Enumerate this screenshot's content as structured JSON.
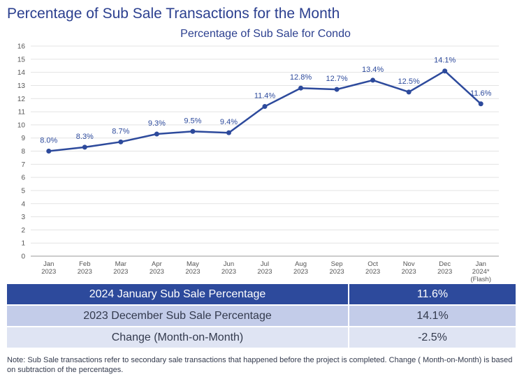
{
  "page_title": "Percentage of Sub Sale Transactions for the Month",
  "colors": {
    "title": "#2b3f8f",
    "line": "#2d4a9c",
    "row_header_bg": "#2d4a9c",
    "row_alt_bg": "#c3cce9",
    "row_light_bg": "#dfe4f3",
    "negative": "#e03131"
  },
  "chart_data": {
    "type": "line",
    "title": "Percentage of Sub Sale for Condo",
    "xlabel": "",
    "ylabel": "",
    "ylim": [
      0,
      16
    ],
    "yticks": [
      0,
      1,
      2,
      3,
      4,
      5,
      6,
      7,
      8,
      9,
      10,
      11,
      12,
      13,
      14,
      15,
      16
    ],
    "grid": true,
    "categories": [
      [
        "Jan",
        "2023"
      ],
      [
        "Feb",
        "2023"
      ],
      [
        "Mar",
        "2023"
      ],
      [
        "Apr",
        "2023"
      ],
      [
        "May",
        "2023"
      ],
      [
        "Jun",
        "2023"
      ],
      [
        "Jul",
        "2023"
      ],
      [
        "Aug",
        "2023"
      ],
      [
        "Sep",
        "2023"
      ],
      [
        "Oct",
        "2023"
      ],
      [
        "Nov",
        "2023"
      ],
      [
        "Dec",
        "2023"
      ],
      [
        "Jan",
        "2024*",
        "(Flash)"
      ]
    ],
    "values": [
      8.0,
      8.3,
      8.7,
      9.3,
      9.5,
      9.4,
      11.4,
      12.8,
      12.7,
      13.4,
      12.5,
      14.1,
      11.6
    ],
    "data_labels": [
      "8.0%",
      "8.3%",
      "8.7%",
      "9.3%",
      "9.5%",
      "9.4%",
      "11.4%",
      "12.8%",
      "12.7%",
      "13.4%",
      "12.5%",
      "14.1%",
      "11.6%"
    ]
  },
  "summary": {
    "rows": [
      {
        "label": "2024 January Sub Sale Percentage",
        "value": "11.6%"
      },
      {
        "label": "2023 December Sub Sale Percentage",
        "value": "14.1%"
      },
      {
        "label": "Change (Month-on-Month)",
        "value": "-2.5%"
      }
    ]
  },
  "note": "Note: Sub Sale transactions refer to secondary sale transactions that happened before the project is completed. Change ( Month-on-Month) is based on subtraction of the percentages."
}
